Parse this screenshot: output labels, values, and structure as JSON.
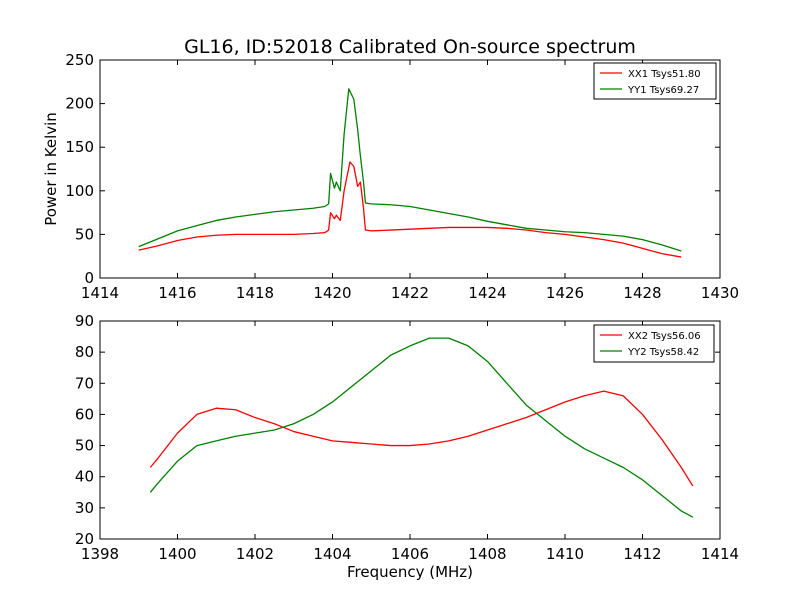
{
  "figure": {
    "title": "GL16, ID:52018 Calibrated On-source spectrum",
    "xlabel": "Frequency (MHz)"
  },
  "chart_data": [
    {
      "type": "line",
      "title": "GL16, ID:52018 Calibrated On-source spectrum",
      "xlabel": "",
      "ylabel": "Power in Kelvin",
      "xlim": [
        1414,
        1430
      ],
      "ylim": [
        0,
        250
      ],
      "xticks": [
        1414,
        1416,
        1418,
        1420,
        1422,
        1424,
        1426,
        1428,
        1430
      ],
      "yticks": [
        0,
        50,
        100,
        150,
        200,
        250
      ],
      "grid": false,
      "legend_position": "top-right",
      "series": [
        {
          "name": "XX1 Tsys51.80",
          "color": "#ff0000",
          "points": [
            [
              1415.0,
              32
            ],
            [
              1415.5,
              37
            ],
            [
              1416.0,
              43
            ],
            [
              1416.5,
              47
            ],
            [
              1417.0,
              49
            ],
            [
              1417.5,
              50
            ],
            [
              1418.0,
              50
            ],
            [
              1418.5,
              50
            ],
            [
              1419.0,
              50
            ],
            [
              1419.5,
              51
            ],
            [
              1419.8,
              52
            ],
            [
              1419.9,
              55
            ],
            [
              1419.95,
              75
            ],
            [
              1420.05,
              68
            ],
            [
              1420.1,
              72
            ],
            [
              1420.2,
              66
            ],
            [
              1420.3,
              100
            ],
            [
              1420.45,
              133
            ],
            [
              1420.55,
              128
            ],
            [
              1420.65,
              105
            ],
            [
              1420.72,
              110
            ],
            [
              1420.8,
              80
            ],
            [
              1420.85,
              55
            ],
            [
              1421.0,
              54
            ],
            [
              1421.5,
              55
            ],
            [
              1422.0,
              56
            ],
            [
              1422.5,
              57
            ],
            [
              1423.0,
              58
            ],
            [
              1423.5,
              58
            ],
            [
              1424.0,
              58
            ],
            [
              1424.5,
              57
            ],
            [
              1425.0,
              55
            ],
            [
              1425.5,
              52
            ],
            [
              1426.0,
              50
            ],
            [
              1426.5,
              47
            ],
            [
              1427.0,
              44
            ],
            [
              1427.5,
              40
            ],
            [
              1428.0,
              34
            ],
            [
              1428.5,
              28
            ],
            [
              1429.0,
              24
            ]
          ]
        },
        {
          "name": "YY1 Tsys69.27",
          "color": "#008000",
          "points": [
            [
              1415.0,
              36
            ],
            [
              1415.5,
              45
            ],
            [
              1416.0,
              54
            ],
            [
              1416.5,
              60
            ],
            [
              1417.0,
              66
            ],
            [
              1417.5,
              70
            ],
            [
              1418.0,
              73
            ],
            [
              1418.5,
              76
            ],
            [
              1419.0,
              78
            ],
            [
              1419.5,
              80
            ],
            [
              1419.8,
              82
            ],
            [
              1419.9,
              85
            ],
            [
              1419.95,
              120
            ],
            [
              1420.05,
              103
            ],
            [
              1420.1,
              110
            ],
            [
              1420.2,
              100
            ],
            [
              1420.3,
              165
            ],
            [
              1420.42,
              217
            ],
            [
              1420.55,
              205
            ],
            [
              1420.65,
              170
            ],
            [
              1420.72,
              140
            ],
            [
              1420.8,
              110
            ],
            [
              1420.85,
              86
            ],
            [
              1421.0,
              85
            ],
            [
              1421.5,
              84
            ],
            [
              1422.0,
              82
            ],
            [
              1422.5,
              78
            ],
            [
              1423.0,
              74
            ],
            [
              1423.5,
              70
            ],
            [
              1424.0,
              65
            ],
            [
              1424.5,
              61
            ],
            [
              1425.0,
              57
            ],
            [
              1425.5,
              55
            ],
            [
              1426.0,
              53
            ],
            [
              1426.5,
              52
            ],
            [
              1427.0,
              50
            ],
            [
              1427.5,
              48
            ],
            [
              1428.0,
              44
            ],
            [
              1428.5,
              38
            ],
            [
              1429.0,
              31
            ]
          ]
        }
      ]
    },
    {
      "type": "line",
      "title": "",
      "xlabel": "Frequency (MHz)",
      "ylabel": "",
      "xlim": [
        1398,
        1414
      ],
      "ylim": [
        20,
        90
      ],
      "xticks": [
        1398,
        1400,
        1402,
        1404,
        1406,
        1408,
        1410,
        1412,
        1414
      ],
      "yticks": [
        20,
        30,
        40,
        50,
        60,
        70,
        80,
        90
      ],
      "grid": false,
      "legend_position": "top-right",
      "series": [
        {
          "name": "XX2 Tsys56.06",
          "color": "#ff0000",
          "points": [
            [
              1399.3,
              43
            ],
            [
              1399.5,
              46
            ],
            [
              1400.0,
              54
            ],
            [
              1400.5,
              60
            ],
            [
              1401.0,
              62
            ],
            [
              1401.5,
              61.5
            ],
            [
              1402.0,
              59
            ],
            [
              1402.5,
              57
            ],
            [
              1403.0,
              54.5
            ],
            [
              1403.5,
              53
            ],
            [
              1404.0,
              51.5
            ],
            [
              1404.5,
              51
            ],
            [
              1405.0,
              50.5
            ],
            [
              1405.5,
              50
            ],
            [
              1406.0,
              50
            ],
            [
              1406.5,
              50.5
            ],
            [
              1407.0,
              51.5
            ],
            [
              1407.5,
              53
            ],
            [
              1408.0,
              55
            ],
            [
              1408.5,
              57
            ],
            [
              1409.0,
              59
            ],
            [
              1409.5,
              61.5
            ],
            [
              1410.0,
              64
            ],
            [
              1410.5,
              66
            ],
            [
              1411.0,
              67.5
            ],
            [
              1411.5,
              66
            ],
            [
              1412.0,
              60
            ],
            [
              1412.5,
              52
            ],
            [
              1413.0,
              43
            ],
            [
              1413.3,
              37
            ]
          ]
        },
        {
          "name": "YY2 Tsys58.42",
          "color": "#008000",
          "points": [
            [
              1399.3,
              35
            ],
            [
              1399.5,
              38
            ],
            [
              1400.0,
              45
            ],
            [
              1400.5,
              50
            ],
            [
              1401.0,
              51.5
            ],
            [
              1401.5,
              53
            ],
            [
              1402.0,
              54
            ],
            [
              1402.5,
              55
            ],
            [
              1403.0,
              57
            ],
            [
              1403.5,
              60
            ],
            [
              1404.0,
              64
            ],
            [
              1404.5,
              69
            ],
            [
              1405.0,
              74
            ],
            [
              1405.5,
              79
            ],
            [
              1406.0,
              82
            ],
            [
              1406.5,
              84.5
            ],
            [
              1407.0,
              84.5
            ],
            [
              1407.5,
              82
            ],
            [
              1408.0,
              77
            ],
            [
              1408.5,
              70
            ],
            [
              1409.0,
              63
            ],
            [
              1409.5,
              58
            ],
            [
              1410.0,
              53
            ],
            [
              1410.5,
              49
            ],
            [
              1411.0,
              46
            ],
            [
              1411.5,
              43
            ],
            [
              1412.0,
              39
            ],
            [
              1412.5,
              34
            ],
            [
              1413.0,
              29
            ],
            [
              1413.3,
              27
            ]
          ]
        }
      ]
    }
  ]
}
